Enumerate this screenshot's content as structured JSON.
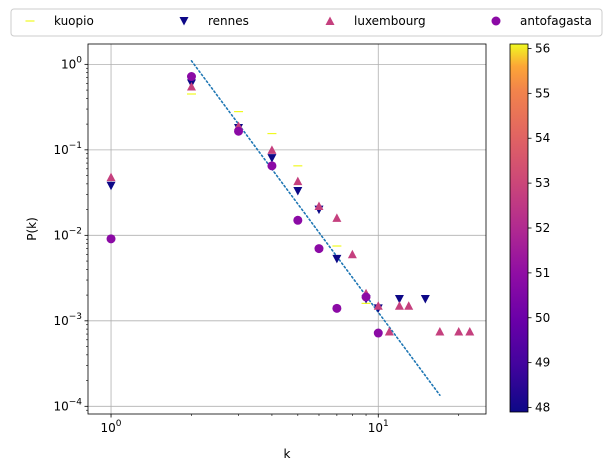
{
  "chart_data": {
    "type": "scatter",
    "xlabel": "k",
    "ylabel": "P(k)",
    "xscale": "log",
    "yscale": "log",
    "xlim": [
      0.82,
      25.3
    ],
    "ylim": [
      8.13e-05,
      1.73
    ],
    "grid": true,
    "legend_placement": "top, outside, 4 columns",
    "x_ticks": [
      {
        "value": 1,
        "base": "10",
        "exp": "0"
      },
      {
        "value": 10,
        "base": "10",
        "exp": "1"
      }
    ],
    "y_ticks": [
      {
        "value": 0.0001,
        "base": "10",
        "exp": "−4"
      },
      {
        "value": 0.001,
        "base": "10",
        "exp": "−3"
      },
      {
        "value": 0.01,
        "base": "10",
        "exp": "−2"
      },
      {
        "value": 0.1,
        "base": "10",
        "exp": "−1"
      },
      {
        "value": 1,
        "base": "10",
        "exp": "0"
      }
    ],
    "colorbar": {
      "colormap": "plasma",
      "min": 47.9,
      "max": 56.1,
      "ticks": [
        "48",
        "49",
        "50",
        "51",
        "52",
        "53",
        "54",
        "55",
        "56"
      ]
    },
    "fit_line": {
      "style": "dotted",
      "color": "#1f77b4",
      "points": [
        [
          2,
          1.1
        ],
        [
          17,
          0.000135
        ]
      ]
    },
    "series": [
      {
        "name": "kuopio",
        "marker": "hline",
        "color": "#f0f921",
        "color_value": 56,
        "points": [
          [
            2,
            0.45
          ],
          [
            3,
            0.28
          ],
          [
            4,
            0.155
          ],
          [
            5,
            0.065
          ],
          [
            7,
            0.0075
          ],
          [
            9,
            0.0016
          ]
        ]
      },
      {
        "name": "rennes",
        "marker": "triangle_down",
        "color": "#0d0887",
        "color_value": 48,
        "points": [
          [
            1,
            0.038
          ],
          [
            2,
            0.6
          ],
          [
            3,
            0.18
          ],
          [
            4,
            0.08
          ],
          [
            5,
            0.033
          ],
          [
            6,
            0.02
          ],
          [
            7,
            0.0053
          ],
          [
            9,
            0.0018
          ],
          [
            10,
            0.0014
          ],
          [
            12,
            0.0018
          ],
          [
            15,
            0.0018
          ]
        ]
      },
      {
        "name": "luxembourg",
        "marker": "triangle_up",
        "color": "#c5407e",
        "color_value": 51.5,
        "points": [
          [
            1,
            0.048
          ],
          [
            2,
            0.55
          ],
          [
            3,
            0.19
          ],
          [
            4,
            0.1
          ],
          [
            5,
            0.043
          ],
          [
            6,
            0.022
          ],
          [
            7,
            0.016
          ],
          [
            8,
            0.006
          ],
          [
            9,
            0.0021
          ],
          [
            10,
            0.0015
          ],
          [
            11,
            0.00075
          ],
          [
            12,
            0.0015
          ],
          [
            13,
            0.0015
          ],
          [
            17,
            0.00075
          ],
          [
            20,
            0.00075
          ],
          [
            22,
            0.00075
          ]
        ]
      },
      {
        "name": "antofagasta",
        "marker": "circle",
        "color": "#8b0aa5",
        "color_value": 50.3,
        "points": [
          [
            1,
            0.0091
          ],
          [
            2,
            0.72
          ],
          [
            3,
            0.165
          ],
          [
            4,
            0.065
          ],
          [
            5,
            0.015
          ],
          [
            6,
            0.007
          ],
          [
            7,
            0.0014
          ],
          [
            9,
            0.0019
          ],
          [
            10,
            0.00072
          ]
        ]
      }
    ]
  }
}
